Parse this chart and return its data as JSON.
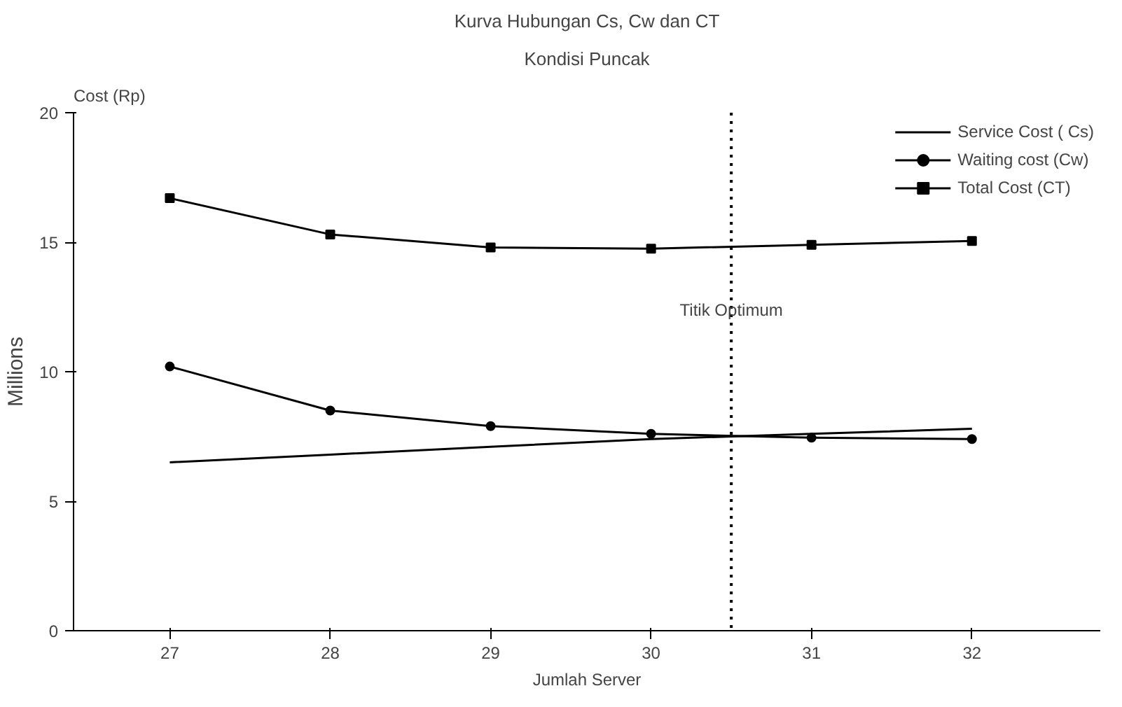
{
  "chart_data": {
    "type": "line",
    "title": "Kurva Hubungan Cs, Cw dan CT",
    "subtitle": "Kondisi Puncak",
    "xlabel": "Jumlah Server",
    "ylabel": "Millions",
    "annotations": [
      "Cost (Rp)"
    ],
    "x": [
      27,
      28,
      29,
      30,
      31,
      32
    ],
    "series": [
      {
        "name": "Service Cost ( Cs)",
        "color": "#000000",
        "marker": "none",
        "values": [
          6.5,
          6.8,
          7.1,
          7.4,
          7.6,
          7.8
        ]
      },
      {
        "name": "Waiting cost (Cw)",
        "color": "#000000",
        "marker": "circle",
        "values": [
          10.2,
          8.5,
          7.9,
          7.6,
          7.45,
          7.4
        ]
      },
      {
        "name": "Total Cost (CT)",
        "color": "#000000",
        "marker": "square",
        "values": [
          16.7,
          15.3,
          14.8,
          14.75,
          14.9,
          15.05
        ]
      }
    ],
    "xlim": [
      26.4,
      32.8
    ],
    "xticks": [
      27,
      28,
      29,
      30,
      31,
      32
    ],
    "ylim": [
      0,
      20
    ],
    "yticks": [
      0,
      5,
      10,
      15,
      20
    ],
    "ref_lines": [
      {
        "axis": "x",
        "value": 30.5,
        "label": "Titik Optimum",
        "line_style": "dotted",
        "color": "#000000"
      }
    ],
    "grid": false,
    "legend": "top right"
  }
}
